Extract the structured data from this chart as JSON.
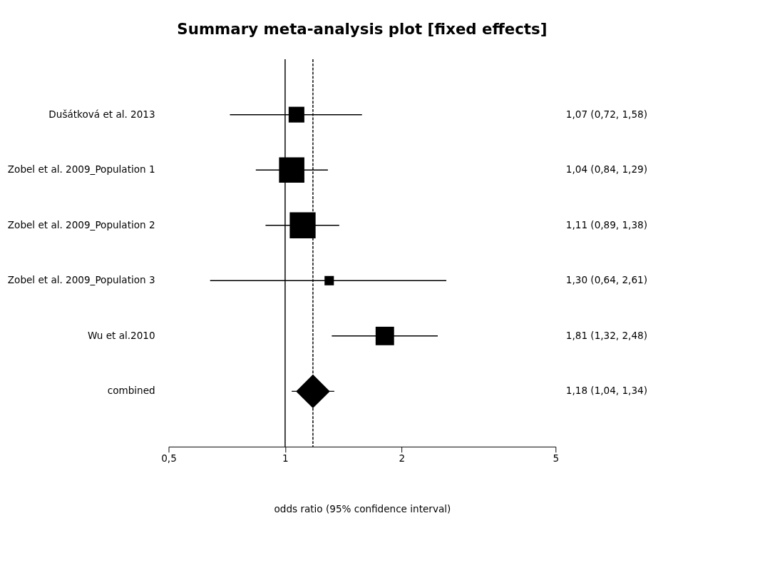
{
  "chart_data": {
    "type": "bubble",
    "orientation": "horizontal",
    "title": "Summary meta-analysis plot [fixed effects]",
    "xlabel": "odds ratio (95% confidence interval)",
    "categories": [
      "Dušátková et al. 2013",
      "Zobel et al. 2009_Population 1",
      "Zobel et al. 2009_Population 2",
      "Zobel et al. 2009_Population 3",
      "Wu et al.2010",
      "combined"
    ],
    "series": [
      {
        "color": "#000000",
        "marker": "square",
        "values": [
          1.07,
          1.04,
          1.11,
          1.3,
          1.81,
          null
        ],
        "errors": [
          [
            0.72,
            1.58
          ],
          [
            0.84,
            1.29
          ],
          [
            0.89,
            1.38
          ],
          [
            0.64,
            2.61
          ],
          [
            1.32,
            2.48
          ],
          null
        ],
        "sizes": [
          0.37,
          0.96,
          1,
          0.13,
          0.51,
          null
        ]
      },
      {
        "color": "#000000",
        "marker": "diamond",
        "values": [
          null,
          null,
          null,
          null,
          null,
          1.18
        ],
        "errors": [
          null,
          null,
          null,
          null,
          null,
          [
            1.04,
            1.34
          ]
        ]
      }
    ],
    "value_labels": [
      "1,07 (0,72, 1,58)",
      "1,04 (0,84, 1,29)",
      "1,11 (0,89, 1,38)",
      "1,30 (0,64, 2,61)",
      "1,81 (1,32, 2,48)",
      "1,18 (1,04, 1,34)"
    ],
    "xlim": [
      0.5,
      5
    ],
    "xticks": [
      {
        "value": 0.5,
        "label": "0,5"
      },
      1,
      2,
      5
    ],
    "log": "x",
    "ref_lines": [
      {
        "axis": "x",
        "value": 1,
        "line_style": "solid"
      },
      {
        "axis": "x",
        "value": 1.18,
        "line_style": "dashed"
      }
    ],
    "grid": false,
    "legend": false
  }
}
